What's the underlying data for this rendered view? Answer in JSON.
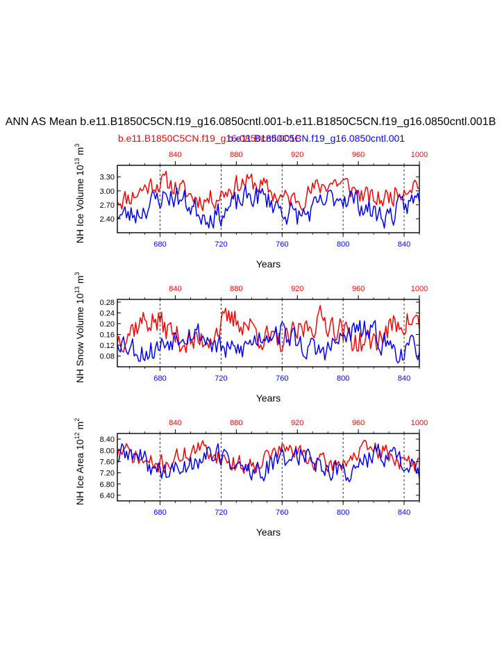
{
  "figure": {
    "title": "ANN AS Mean b.e11.B1850C5CN.f19_g16.0850cntl.001-b.e11.B1850C5CN.f19_g16.0850cntl.001B",
    "legend": [
      {
        "label": "b.e11.B1850C5CN.f19_g16.0850cntl.001B",
        "color": "#ff0000"
      },
      {
        "label": "b.e11.B1850C5CN.f19_g16.0850cntl.001",
        "color": "#0000ff"
      }
    ],
    "colors": {
      "top_axis": "#ff0000",
      "bottom_axis": "#0000ff",
      "frame": "#000000"
    }
  },
  "chart_data": [
    {
      "type": "line",
      "ylabel": "NH Ice Volume 10",
      "ylabel_exp": "13",
      "ylabel_unit": " m",
      "ylabel_unit_exp": "3",
      "xlabel": "Years",
      "ylim": [
        2.1,
        3.55
      ],
      "yticks": [
        2.4,
        2.7,
        3.0,
        3.3
      ],
      "ytick_labels": [
        "2.40",
        "2.70",
        "3.00",
        "3.30"
      ],
      "bottom_xlim": [
        652,
        850
      ],
      "bottom_xticks": [
        680,
        720,
        760,
        800,
        840
      ],
      "top_xlim": [
        802,
        1000
      ],
      "top_xticks": [
        840,
        880,
        920,
        960,
        1000
      ],
      "series": [
        {
          "name": "b.e11.B1850C5CN.f19_g16.0850cntl.001B",
          "axis": "top",
          "color": "#ff0000",
          "seed": 11,
          "mean": 3.0,
          "amp": 0.22,
          "min": 2.5,
          "max": 3.55
        },
        {
          "name": "b.e11.B1850C5CN.f19_g16.0850cntl.001",
          "axis": "bottom",
          "color": "#0000ff",
          "seed": 23,
          "mean": 2.68,
          "amp": 0.25,
          "min": 2.2,
          "max": 3.3
        }
      ]
    },
    {
      "type": "line",
      "ylabel": "NH Snow Volume 10",
      "ylabel_exp": "13",
      "ylabel_unit": " m",
      "ylabel_unit_exp": "3",
      "xlabel": "Years",
      "ylim": [
        0.04,
        0.29
      ],
      "yticks": [
        0.08,
        0.12,
        0.16,
        0.2,
        0.24,
        0.28
      ],
      "ytick_labels": [
        "0.08",
        "0.12",
        "0.16",
        "0.20",
        "0.24",
        "0.28"
      ],
      "bottom_xlim": [
        652,
        850
      ],
      "bottom_xticks": [
        680,
        720,
        760,
        800,
        840
      ],
      "top_xlim": [
        802,
        1000
      ],
      "top_xticks": [
        840,
        880,
        920,
        960,
        1000
      ],
      "series": [
        {
          "name": "b.e11.B1850C5CN.f19_g16.0850cntl.001B",
          "axis": "top",
          "color": "#ff0000",
          "seed": 37,
          "mean": 0.17,
          "amp": 0.05,
          "min": 0.07,
          "max": 0.29
        },
        {
          "name": "b.e11.B1850C5CN.f19_g16.0850cntl.001",
          "axis": "bottom",
          "color": "#0000ff",
          "seed": 53,
          "mean": 0.135,
          "amp": 0.045,
          "min": 0.04,
          "max": 0.26
        }
      ]
    },
    {
      "type": "line",
      "ylabel": "NH Ice Area 10",
      "ylabel_exp": "12",
      "ylabel_unit": " m",
      "ylabel_unit_exp": "2",
      "xlabel": "Years",
      "ylim": [
        6.2,
        8.6
      ],
      "yticks": [
        6.4,
        6.8,
        7.2,
        7.6,
        8.0,
        8.4
      ],
      "ytick_labels": [
        "6.40",
        "6.80",
        "7.20",
        "7.60",
        "8.00",
        "8.40"
      ],
      "bottom_xlim": [
        652,
        850
      ],
      "bottom_xticks": [
        680,
        720,
        760,
        800,
        840
      ],
      "top_xlim": [
        802,
        1000
      ],
      "top_xticks": [
        840,
        880,
        920,
        960,
        1000
      ],
      "series": [
        {
          "name": "b.e11.B1850C5CN.f19_g16.0850cntl.001B",
          "axis": "top",
          "color": "#ff0000",
          "seed": 71,
          "mean": 7.75,
          "amp": 0.32,
          "min": 6.8,
          "max": 8.55
        },
        {
          "name": "b.e11.B1850C5CN.f19_g16.0850cntl.001",
          "axis": "bottom",
          "color": "#0000ff",
          "seed": 89,
          "mean": 7.55,
          "amp": 0.38,
          "min": 6.25,
          "max": 8.5
        }
      ]
    }
  ]
}
